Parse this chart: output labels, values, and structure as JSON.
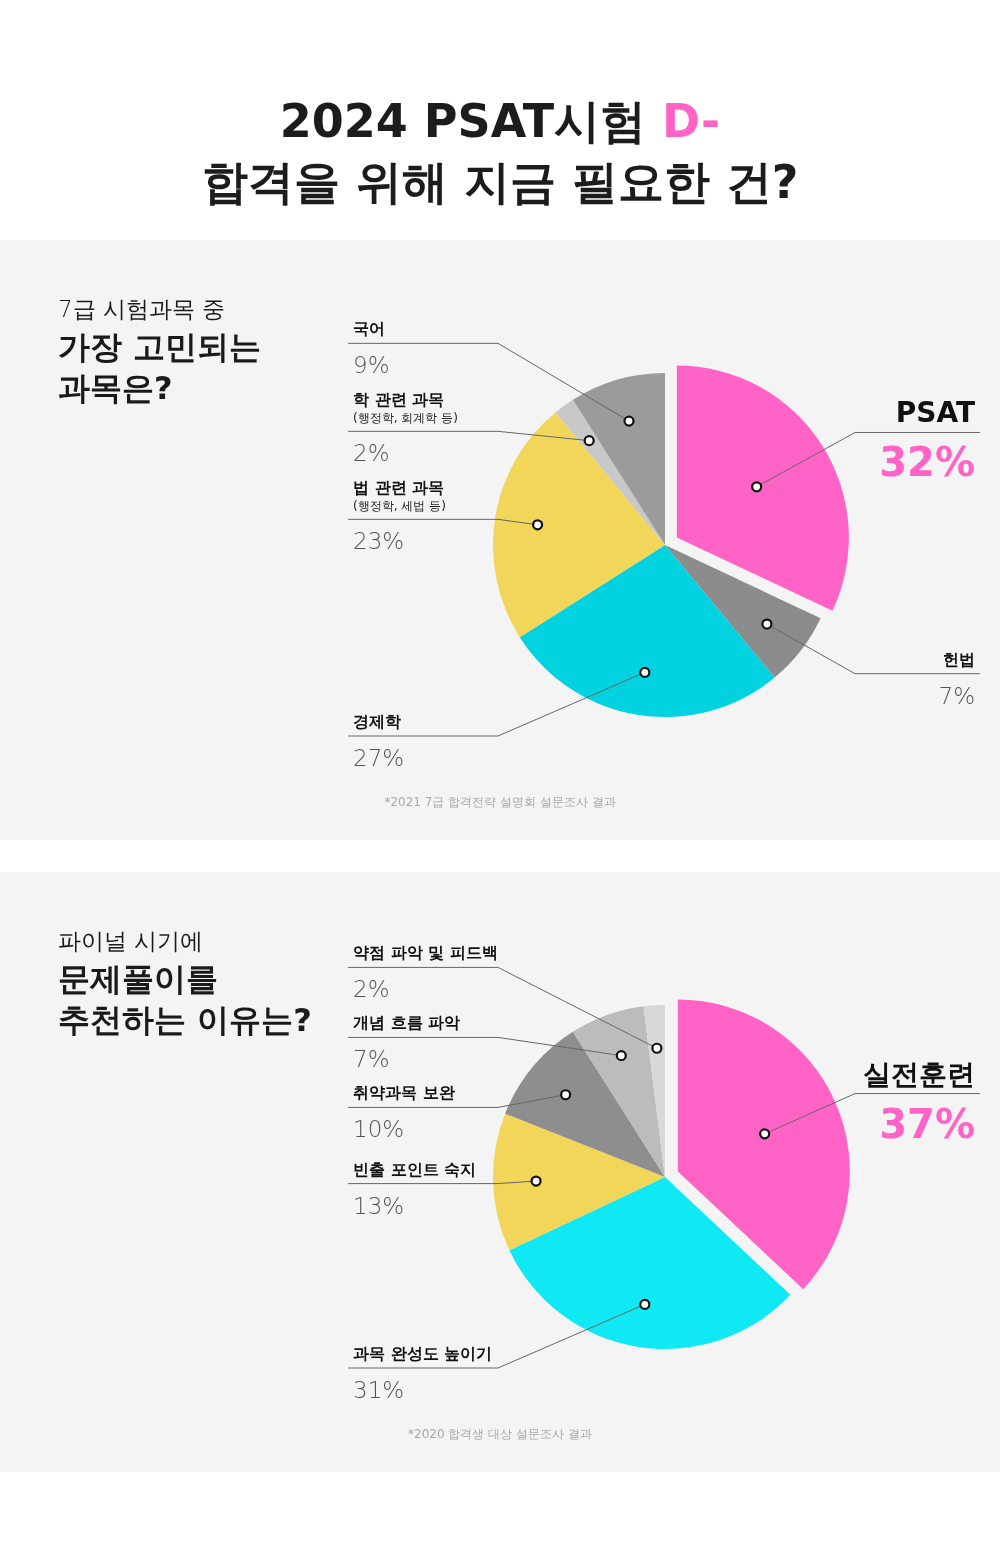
{
  "chart_data": [
    {
      "type": "pie",
      "title": "2024 PSAT시험 D-\n합격을 위해 지금 필요한 건?",
      "subtitle": "7급 시험과목 중\n**가장 고민되는\n과목은?**",
      "categories": [
        "PSAT",
        "헌법",
        "경제학",
        "법 관련 과목\n(행정학, 세법 등)",
        "학 관련 과목\n(행정학, 회계학 등)",
        "국어"
      ],
      "values": [
        32,
        7,
        27,
        23,
        2,
        9
      ],
      "value_labels": [
        "32%",
        "7%",
        "27%",
        "23%",
        "2%",
        "9%"
      ],
      "colors": [
        "#ff63c6",
        "#8c8c8c",
        "#00d3df",
        "#f2d65a",
        "#c8c8c8",
        "#9b9b9b"
      ],
      "annotations": [
        "*2021 7급 합격전략 설명회 설문조사 결과"
      ]
    },
    {
      "type": "pie",
      "subtitle": "파이널 시기에\n**문제풀이를\n추천하는 이유는?**",
      "categories": [
        "실전훈련",
        "과목 완성도 높이기",
        "빈출 포인트 숙지",
        "취약과목 보완",
        "개념 흐름 파악",
        "약점 파악 및 피드백"
      ],
      "values": [
        37,
        31,
        13,
        10,
        7,
        2
      ],
      "value_labels": [
        "37%",
        "31%",
        "13%",
        "10%",
        "7%",
        "2%"
      ],
      "colors": [
        "#ff63c6",
        "#10e8f4",
        "#f2d65a",
        "#8e8e8e",
        "#bcbcbc",
        "#d8d8d8"
      ],
      "annotations": [
        "*2020 합격생 대상 설문조사 결과"
      ]
    }
  ]
}
